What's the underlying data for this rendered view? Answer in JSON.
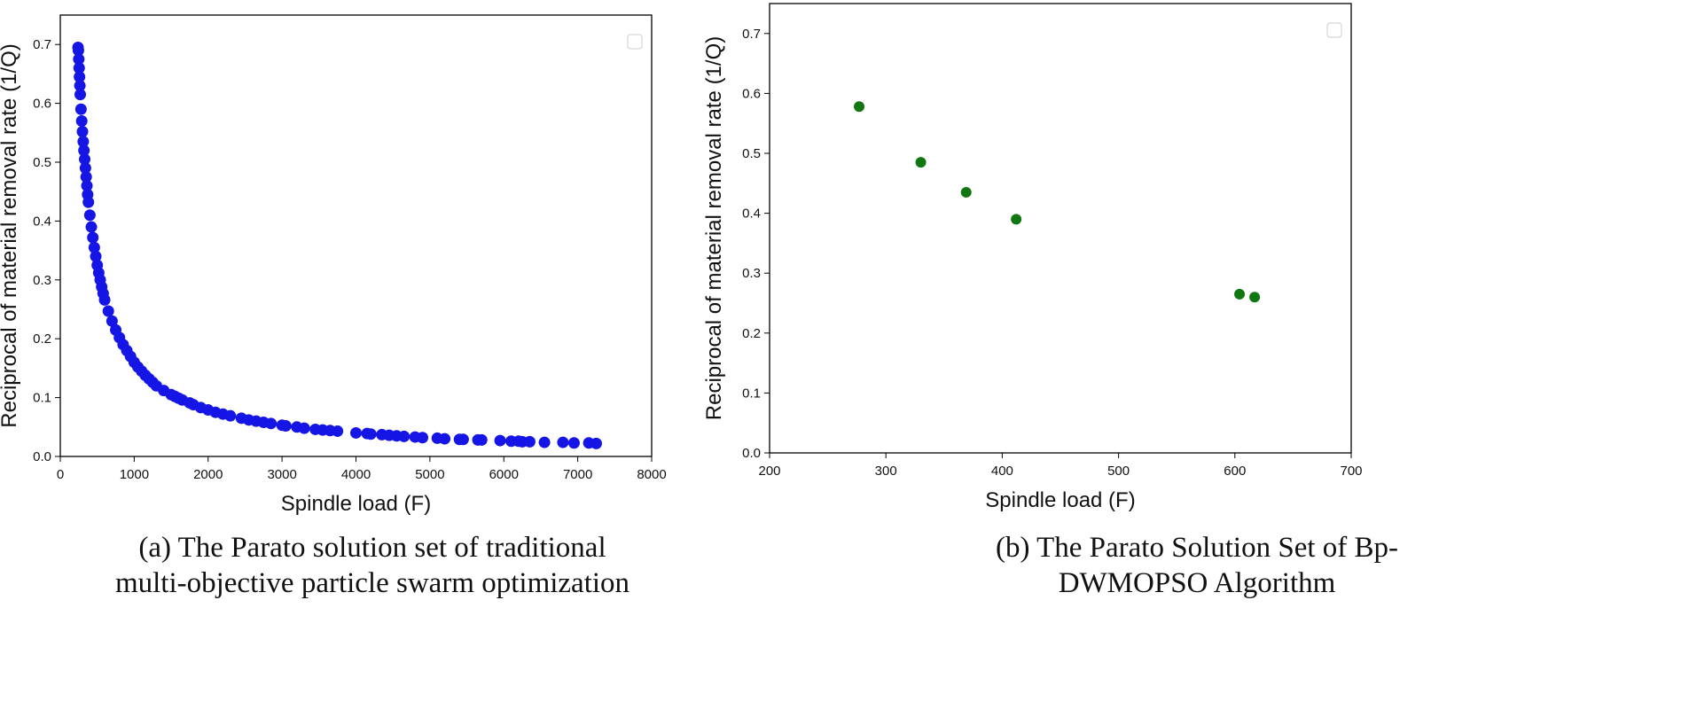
{
  "chart_data": [
    {
      "type": "scatter",
      "panel": "a",
      "xlabel": "Spindle load (F)",
      "ylabel": "Reciprocal of material removal rate (1/Q)",
      "xlim": [
        0,
        8000
      ],
      "ylim": [
        0,
        0.75
      ],
      "xticks": [
        "0",
        "1000",
        "2000",
        "3000",
        "4000",
        "5000",
        "6000",
        "7000",
        "8000"
      ],
      "yticks": [
        "0.0",
        "0.1",
        "0.2",
        "0.3",
        "0.4",
        "0.5",
        "0.6",
        "0.7"
      ],
      "grid": false,
      "legend": "top-right (empty)",
      "color": "#1515e6",
      "series": [
        {
          "x": [
            240,
            245,
            250,
            255,
            260,
            265,
            270,
            280,
            290,
            300,
            310,
            320,
            330,
            340,
            350,
            360,
            370,
            380,
            400,
            420,
            440,
            460,
            480,
            500,
            520,
            540,
            560,
            580,
            600,
            650,
            700,
            750,
            800,
            850,
            900,
            950,
            1000,
            1050,
            1100,
            1150,
            1200,
            1250,
            1300,
            1400,
            1500,
            1550,
            1600,
            1650,
            1750,
            1800,
            1900,
            2000,
            2100,
            2200,
            2300,
            2450,
            2550,
            2650,
            2750,
            2850,
            3000,
            3050,
            3200,
            3300,
            3450,
            3550,
            3650,
            3750,
            4000,
            4150,
            4200,
            4350,
            4450,
            4550,
            4650,
            4800,
            4900,
            5100,
            5200,
            5400,
            5450,
            5650,
            5700,
            5950,
            6100,
            6200,
            6250,
            6350,
            6550,
            6800,
            6950,
            7150,
            7250
          ],
          "y": [
            0.695,
            0.69,
            0.675,
            0.66,
            0.645,
            0.63,
            0.615,
            0.59,
            0.57,
            0.552,
            0.535,
            0.52,
            0.505,
            0.49,
            0.475,
            0.46,
            0.445,
            0.432,
            0.41,
            0.39,
            0.372,
            0.355,
            0.34,
            0.325,
            0.312,
            0.3,
            0.288,
            0.277,
            0.266,
            0.247,
            0.23,
            0.215,
            0.202,
            0.19,
            0.18,
            0.17,
            0.16,
            0.152,
            0.145,
            0.138,
            0.132,
            0.126,
            0.12,
            0.112,
            0.105,
            0.102,
            0.099,
            0.096,
            0.091,
            0.088,
            0.083,
            0.079,
            0.075,
            0.072,
            0.069,
            0.065,
            0.062,
            0.06,
            0.058,
            0.056,
            0.053,
            0.052,
            0.05,
            0.048,
            0.046,
            0.045,
            0.044,
            0.043,
            0.04,
            0.039,
            0.038,
            0.037,
            0.036,
            0.035,
            0.034,
            0.033,
            0.032,
            0.031,
            0.03,
            0.029,
            0.029,
            0.028,
            0.028,
            0.027,
            0.026,
            0.026,
            0.025,
            0.025,
            0.024,
            0.024,
            0.023,
            0.023,
            0.022
          ]
        }
      ]
    },
    {
      "type": "scatter",
      "panel": "b",
      "xlabel": "Spindle load (F)",
      "ylabel": "Reciprocal of material removal rate (1/Q)",
      "xlim": [
        200,
        700
      ],
      "ylim": [
        0,
        0.75
      ],
      "xticks": [
        "200",
        "300",
        "400",
        "500",
        "600",
        "700"
      ],
      "yticks": [
        "0.0",
        "0.1",
        "0.2",
        "0.3",
        "0.4",
        "0.5",
        "0.6",
        "0.7"
      ],
      "grid": false,
      "legend": "top-right (empty)",
      "color": "#117711",
      "series": [
        {
          "x": [
            277,
            330,
            369,
            412,
            604,
            617
          ],
          "y": [
            0.578,
            0.485,
            0.435,
            0.39,
            0.265,
            0.26
          ]
        }
      ]
    }
  ],
  "captions": {
    "a_line1": "(a) The Parato solution set of traditional",
    "a_line2": "multi-objective particle swarm optimization",
    "b_line1": "(b) The Parato Solution Set of Bp-",
    "b_line2": "DWMOPSO Algorithm"
  }
}
